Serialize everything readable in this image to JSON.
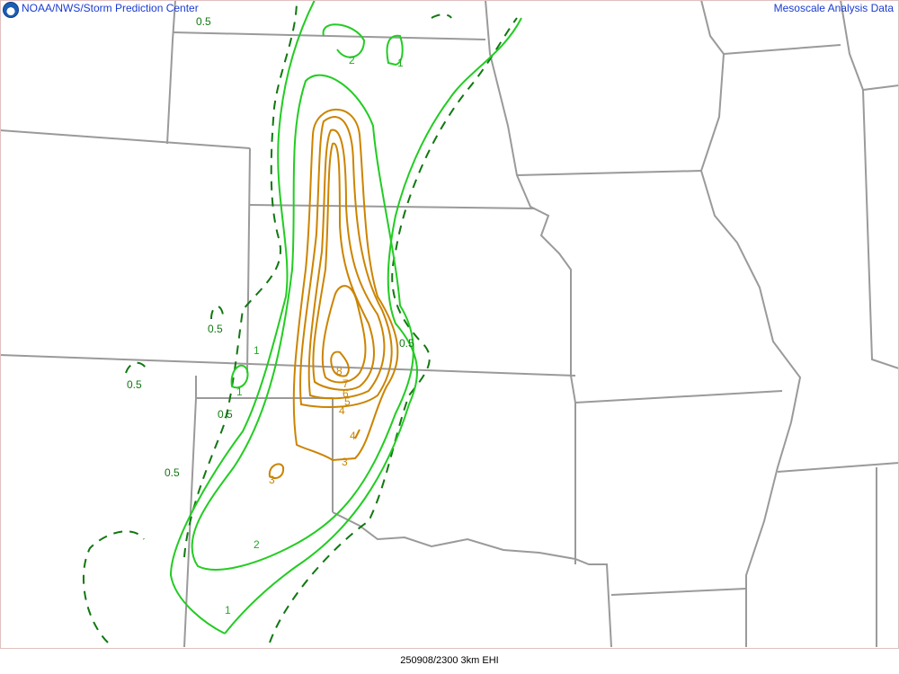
{
  "header": {
    "left": "NOAA/NWS/Storm Prediction Center",
    "right": "Mesoscale Analysis Data",
    "logo": "noaa-logo"
  },
  "footer": {
    "caption": "250908/2300 3km EHI"
  },
  "colors": {
    "state_lines": "#9a9a9a",
    "contour_low_dashed": "#117711",
    "contour_green": "#22cc22",
    "contour_orange": "#cc8400",
    "header_text": "#1a3bd1"
  },
  "contour_labels": {
    "l05a": "0.5",
    "l05b": "0.5",
    "l05c": "0.5",
    "l05d": "0.5",
    "l05e": "0.5",
    "l05f": "0.5",
    "l1a": "1",
    "l1b": "1",
    "l1c": "1",
    "l1d": "1",
    "l2a": "2",
    "l2b": "2",
    "l3a": "3",
    "l3b": "3",
    "l4a": "4",
    "l4b": "4",
    "l5": "5",
    "l6": "6",
    "l7": "7",
    "l8": "8"
  }
}
